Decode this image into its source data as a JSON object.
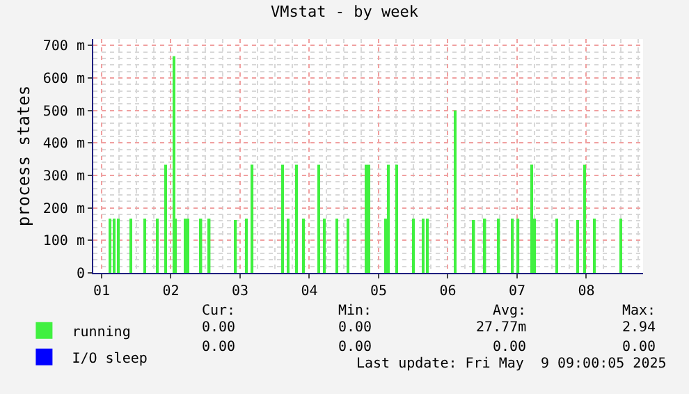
{
  "chart_data": {
    "type": "bar",
    "title": "VMstat - by week",
    "ylabel": "process states",
    "x": [
      1.12,
      1.18,
      1.24,
      1.42,
      1.62,
      1.8,
      1.92,
      2.04,
      2.06,
      2.2,
      2.24,
      2.44,
      2.56,
      2.94,
      3.1,
      3.18,
      3.62,
      3.7,
      3.82,
      3.92,
      4.14,
      4.22,
      4.4,
      4.56,
      4.82,
      4.86,
      5.1,
      5.14,
      5.26,
      5.5,
      5.64,
      5.7,
      6.1,
      6.38,
      6.54,
      6.74,
      6.94,
      7.02,
      7.22,
      7.26,
      7.58,
      7.88,
      7.98,
      8.12,
      8.5
    ],
    "series": [
      {
        "name": "running",
        "color": "#40f040",
        "values": [
          167,
          167,
          167,
          167,
          167,
          167,
          333,
          667,
          167,
          167,
          167,
          167,
          167,
          163,
          167,
          333,
          333,
          167,
          333,
          167,
          333,
          167,
          167,
          167,
          333,
          333,
          167,
          333,
          333,
          167,
          167,
          167,
          500,
          163,
          167,
          167,
          167,
          167,
          333,
          167,
          167,
          163,
          333,
          167,
          167
        ]
      },
      {
        "name": "I/O sleep",
        "color": "#0000ff",
        "values": [
          0,
          0,
          0,
          0,
          0,
          0,
          0,
          0,
          0,
          0,
          0,
          0,
          0,
          0,
          0,
          0,
          0,
          0,
          0,
          0,
          0,
          0,
          0,
          0,
          0,
          0,
          0,
          0,
          0,
          0,
          0,
          0,
          0,
          0,
          0,
          0,
          0,
          0,
          0,
          0,
          0,
          0,
          0,
          0,
          0
        ]
      }
    ],
    "xlim": [
      0.88,
      8.82
    ],
    "xticks": [
      {
        "value": 1,
        "label": "01"
      },
      {
        "value": 2,
        "label": "02"
      },
      {
        "value": 3,
        "label": "03"
      },
      {
        "value": 4,
        "label": "04"
      },
      {
        "value": 5,
        "label": "05"
      },
      {
        "value": 6,
        "label": "06"
      },
      {
        "value": 7,
        "label": "07"
      },
      {
        "value": 8,
        "label": "08"
      }
    ],
    "ylim": [
      0,
      720
    ],
    "yticks": [
      0,
      {
        "value": 100,
        "label": "100 m"
      },
      {
        "value": 200,
        "label": "200 m"
      },
      {
        "value": 300,
        "label": "300 m"
      },
      {
        "value": 400,
        "label": "400 m"
      },
      {
        "value": 500,
        "label": "500 m"
      },
      {
        "value": 600,
        "label": "600 m"
      },
      {
        "value": 700,
        "label": "700 m"
      }
    ],
    "grid": true,
    "legend": "bottom left",
    "annotations": [
      "Cur:",
      "Min:",
      "Avg:",
      "Max:",
      "0.00",
      "0.00",
      "27.77m",
      "2.94",
      "0.00",
      "0.00",
      "0.00",
      "0.00",
      "Last update: Fri May  9 09:00:05 2025"
    ]
  }
}
